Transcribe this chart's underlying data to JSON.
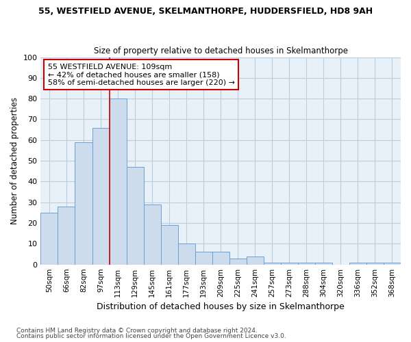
{
  "title_line1": "55, WESTFIELD AVENUE, SKELMANTHORPE, HUDDERSFIELD, HD8 9AH",
  "title_line2": "Size of property relative to detached houses in Skelmanthorpe",
  "xlabel": "Distribution of detached houses by size in Skelmanthorpe",
  "ylabel": "Number of detached properties",
  "categories": [
    "50sqm",
    "66sqm",
    "82sqm",
    "97sqm",
    "113sqm",
    "129sqm",
    "145sqm",
    "161sqm",
    "177sqm",
    "193sqm",
    "209sqm",
    "225sqm",
    "241sqm",
    "257sqm",
    "273sqm",
    "288sqm",
    "304sqm",
    "320sqm",
    "336sqm",
    "352sqm",
    "368sqm"
  ],
  "bar_heights": [
    25,
    28,
    59,
    66,
    80,
    47,
    29,
    19,
    10,
    6,
    6,
    3,
    4,
    1,
    1,
    1,
    1,
    0,
    1,
    1,
    1
  ],
  "bar_color": "#cddcec",
  "bar_edge_color": "#6b9fd4",
  "annotation_text_line1": "55 WESTFIELD AVENUE: 109sqm",
  "annotation_text_line2": "← 42% of detached houses are smaller (158)",
  "annotation_text_line3": "58% of semi-detached houses are larger (220) →",
  "annotation_box_facecolor": "white",
  "annotation_box_edgecolor": "#cc0000",
  "vline_color": "#cc0000",
  "vline_x_idx": 4.0,
  "ylim": [
    0,
    100
  ],
  "yticks": [
    0,
    10,
    20,
    30,
    40,
    50,
    60,
    70,
    80,
    90,
    100
  ],
  "grid_color": "#b8cfe0",
  "bg_color": "#e8f0f8",
  "footnote1": "Contains HM Land Registry data © Crown copyright and database right 2024.",
  "footnote2": "Contains public sector information licensed under the Open Government Licence v3.0."
}
